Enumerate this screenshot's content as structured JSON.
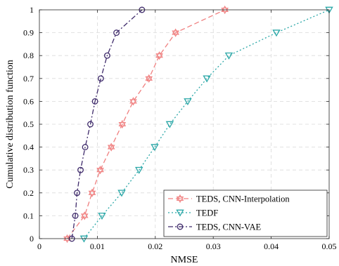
{
  "chart_data": {
    "type": "line",
    "title": "",
    "xlabel": "NMSE",
    "ylabel": "Cumulative distribution function",
    "xlim": [
      0,
      0.05
    ],
    "ylim": [
      0,
      1
    ],
    "xticks": [
      0,
      0.01,
      0.02,
      0.03,
      0.04,
      0.05
    ],
    "xtick_labels": [
      "0",
      "0.01",
      "0.02",
      "0.03",
      "0.04",
      "0.05"
    ],
    "yticks": [
      0,
      0.1,
      0.2,
      0.3,
      0.4,
      0.5,
      0.6,
      0.7,
      0.8,
      0.9,
      1
    ],
    "ytick_labels": [
      "0",
      "0.1",
      "0.2",
      "0.3",
      "0.4",
      "0.5",
      "0.6",
      "0.7",
      "0.8",
      "0.9",
      "1"
    ],
    "grid": true,
    "legend_position": "bottom-right",
    "series": [
      {
        "name": "TEDS, CNN-Interpolation",
        "color": "#f08080",
        "line_style": "dashed",
        "marker": "hexagram",
        "x": [
          0.0048,
          0.0078,
          0.0091,
          0.0105,
          0.0124,
          0.0143,
          0.0162,
          0.0189,
          0.0207,
          0.0235,
          0.032
        ],
        "y": [
          0,
          0.1,
          0.2,
          0.3,
          0.4,
          0.5,
          0.6,
          0.7,
          0.8,
          0.9,
          1
        ]
      },
      {
        "name": "TEDF",
        "color": "#2aa7a7",
        "line_style": "dotted",
        "marker": "triangle-down",
        "x": [
          0.0077,
          0.0108,
          0.0142,
          0.0172,
          0.0199,
          0.0225,
          0.0256,
          0.0289,
          0.0327,
          0.0409,
          0.05
        ],
        "y": [
          0,
          0.1,
          0.2,
          0.3,
          0.4,
          0.5,
          0.6,
          0.7,
          0.8,
          0.9,
          1
        ]
      },
      {
        "name": "TEDS, CNN-VAE",
        "color": "#3f2b6b",
        "line_style": "dashdot",
        "marker": "circle",
        "x": [
          0.0056,
          0.0062,
          0.0065,
          0.0071,
          0.0079,
          0.0088,
          0.0096,
          0.0106,
          0.0117,
          0.0133,
          0.0177
        ],
        "y": [
          0,
          0.1,
          0.2,
          0.3,
          0.4,
          0.5,
          0.6,
          0.7,
          0.8,
          0.9,
          1
        ]
      }
    ]
  }
}
